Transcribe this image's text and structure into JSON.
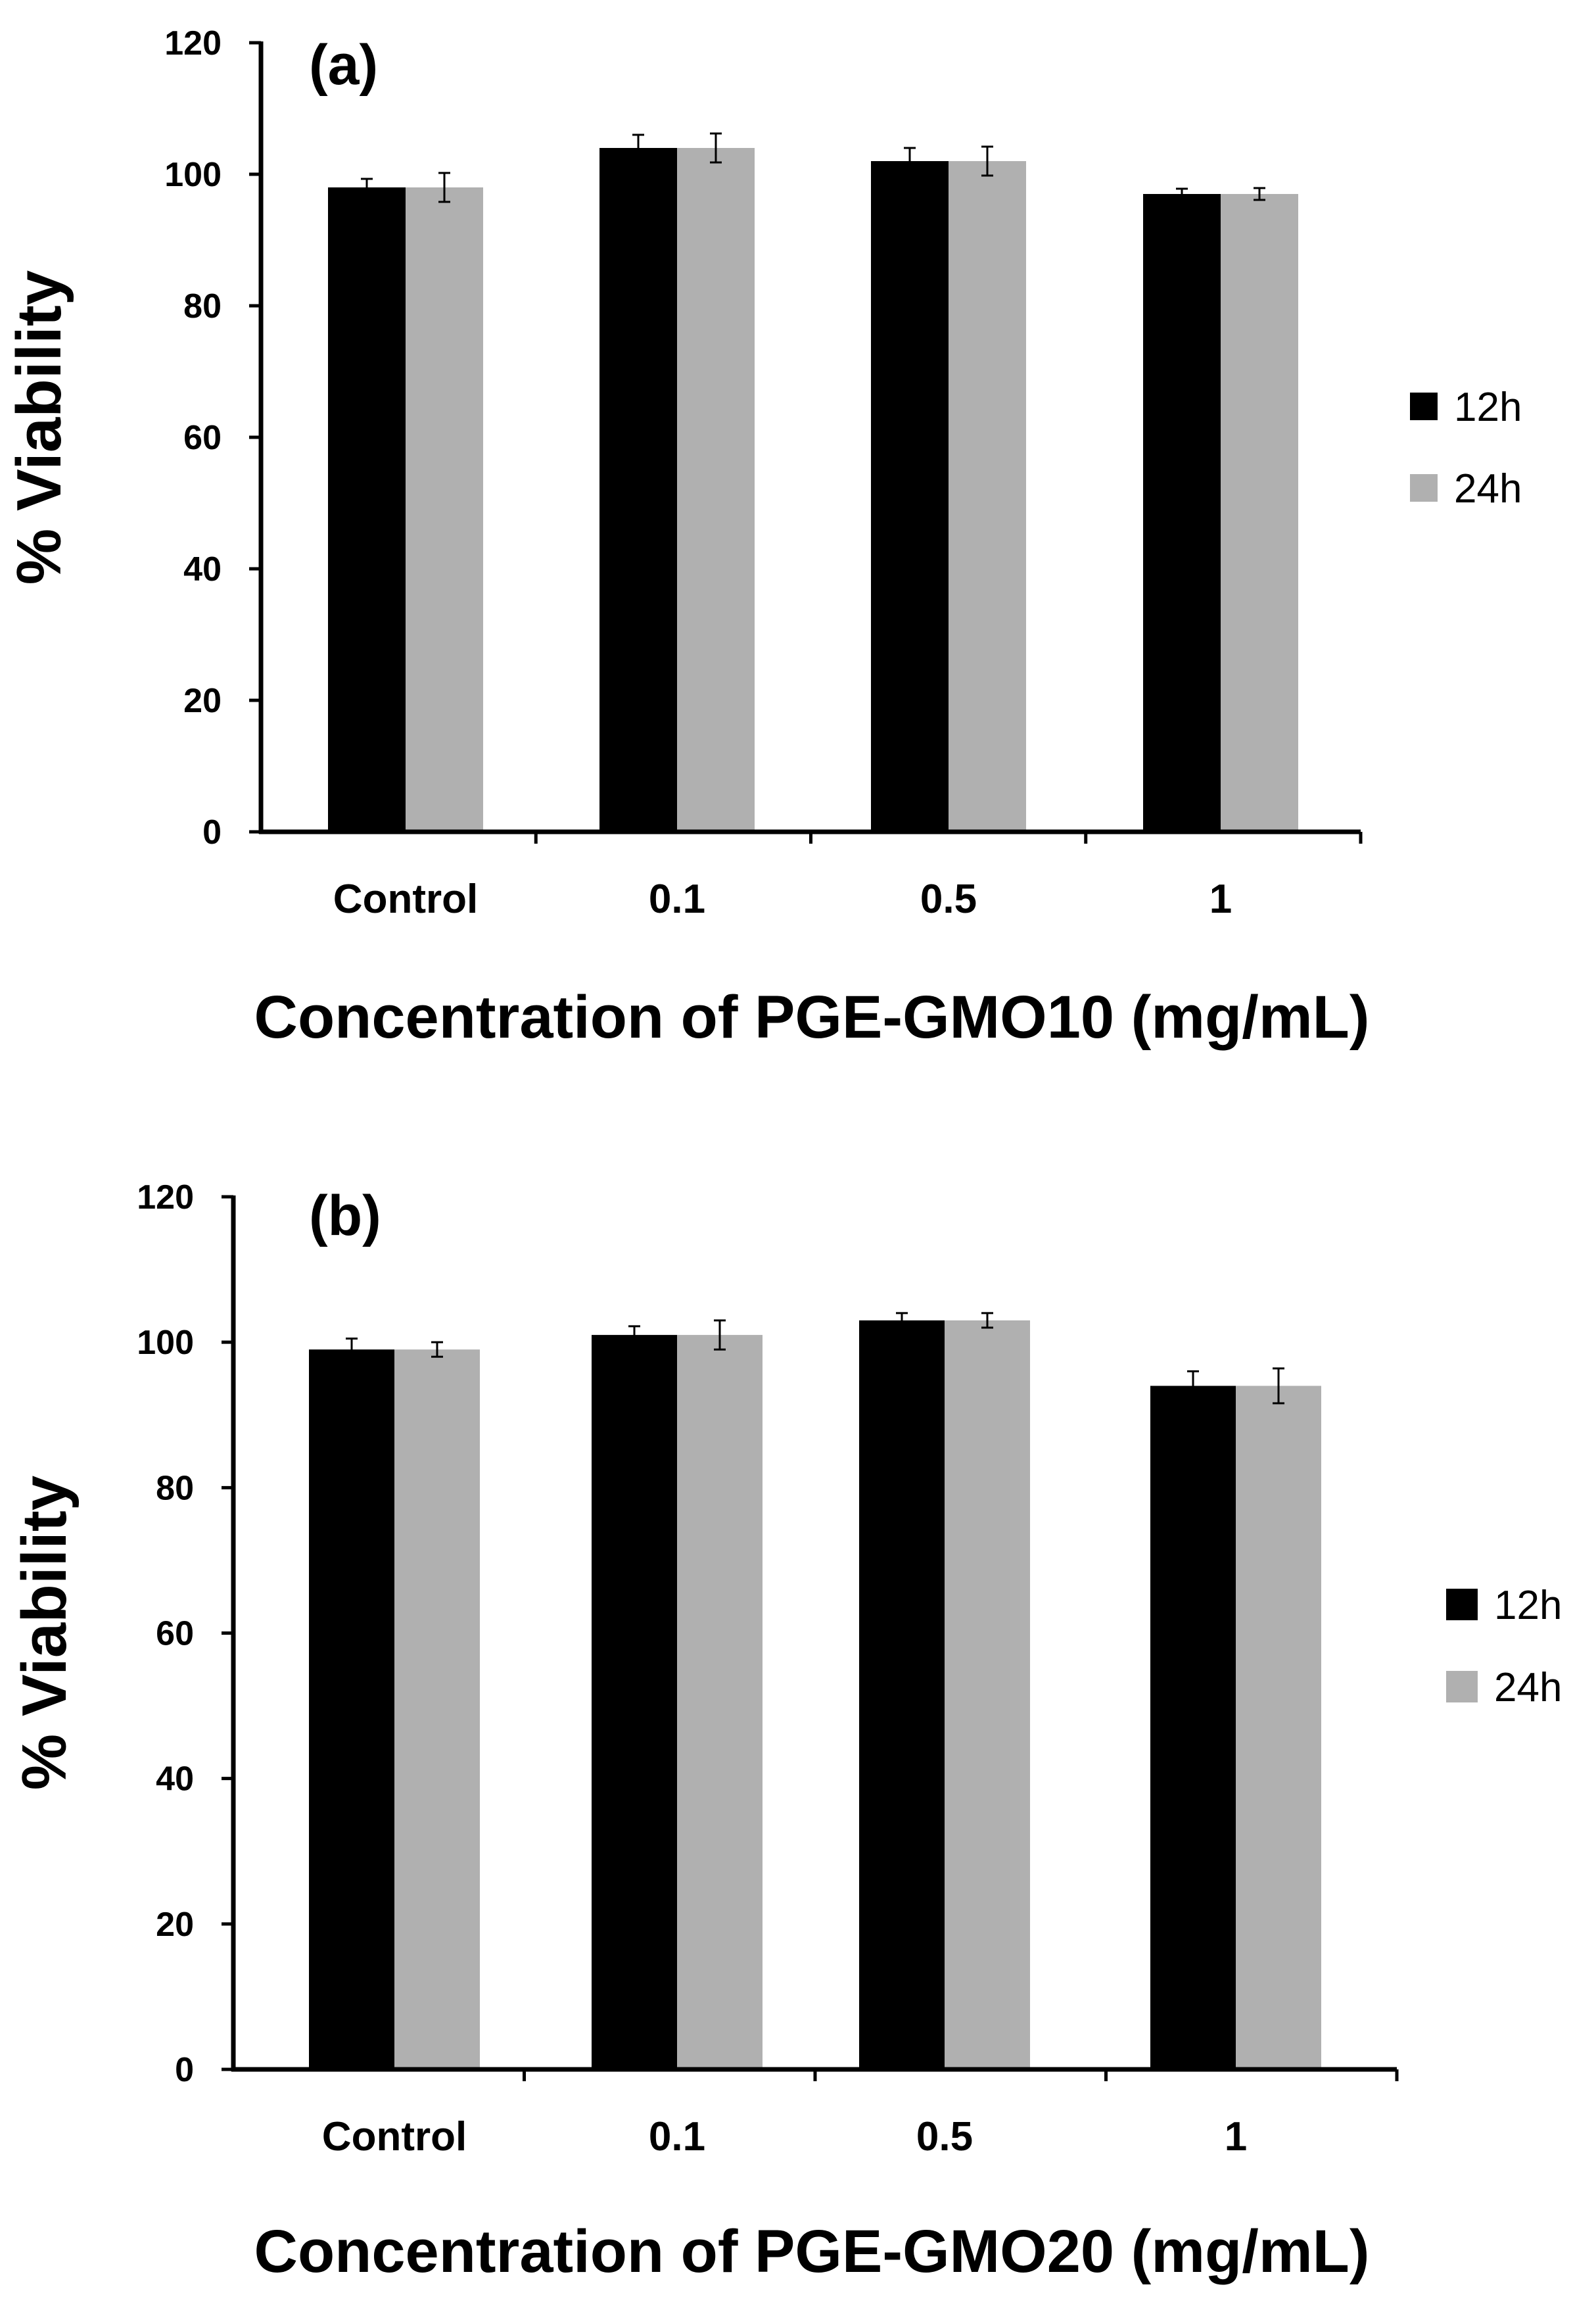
{
  "chart_data": [
    {
      "type": "bar",
      "panel_label": "(a)",
      "categories": [
        "Control",
        "0.1",
        "0.5",
        "1"
      ],
      "series": [
        {
          "name": "12h",
          "color": "#000000",
          "values": [
            98,
            104,
            102,
            97
          ],
          "errors": [
            1.3,
            2.0,
            2.0,
            0.8
          ]
        },
        {
          "name": "24h",
          "color": "#b0b0b0",
          "values": [
            98,
            104,
            102,
            97
          ],
          "errors": [
            2.2,
            2.2,
            2.2,
            0.9
          ]
        }
      ],
      "xlabel": "Concentration of PGE-GMO10 (mg/mL)",
      "ylabel": "% Viability",
      "ylim": [
        0,
        120
      ],
      "yticks": [
        0,
        20,
        40,
        60,
        80,
        100,
        120
      ],
      "grid": false,
      "legend_position": "right"
    },
    {
      "type": "bar",
      "panel_label": "(b)",
      "categories": [
        "Control",
        "0.1",
        "0.5",
        "1"
      ],
      "series": [
        {
          "name": "12h",
          "color": "#000000",
          "values": [
            99,
            101,
            103,
            94
          ],
          "errors": [
            1.5,
            1.2,
            1.0,
            2.0
          ]
        },
        {
          "name": "24h",
          "color": "#b0b0b0",
          "values": [
            99,
            101,
            103,
            94
          ],
          "errors": [
            1.0,
            2.0,
            1.0,
            2.4
          ]
        }
      ],
      "xlabel": "Concentration of PGE-GMO20 (mg/mL)",
      "ylabel": "% Viability",
      "ylim": [
        0,
        120
      ],
      "yticks": [
        0,
        20,
        40,
        60,
        80,
        100,
        120
      ],
      "grid": false,
      "legend_position": "right"
    }
  ]
}
